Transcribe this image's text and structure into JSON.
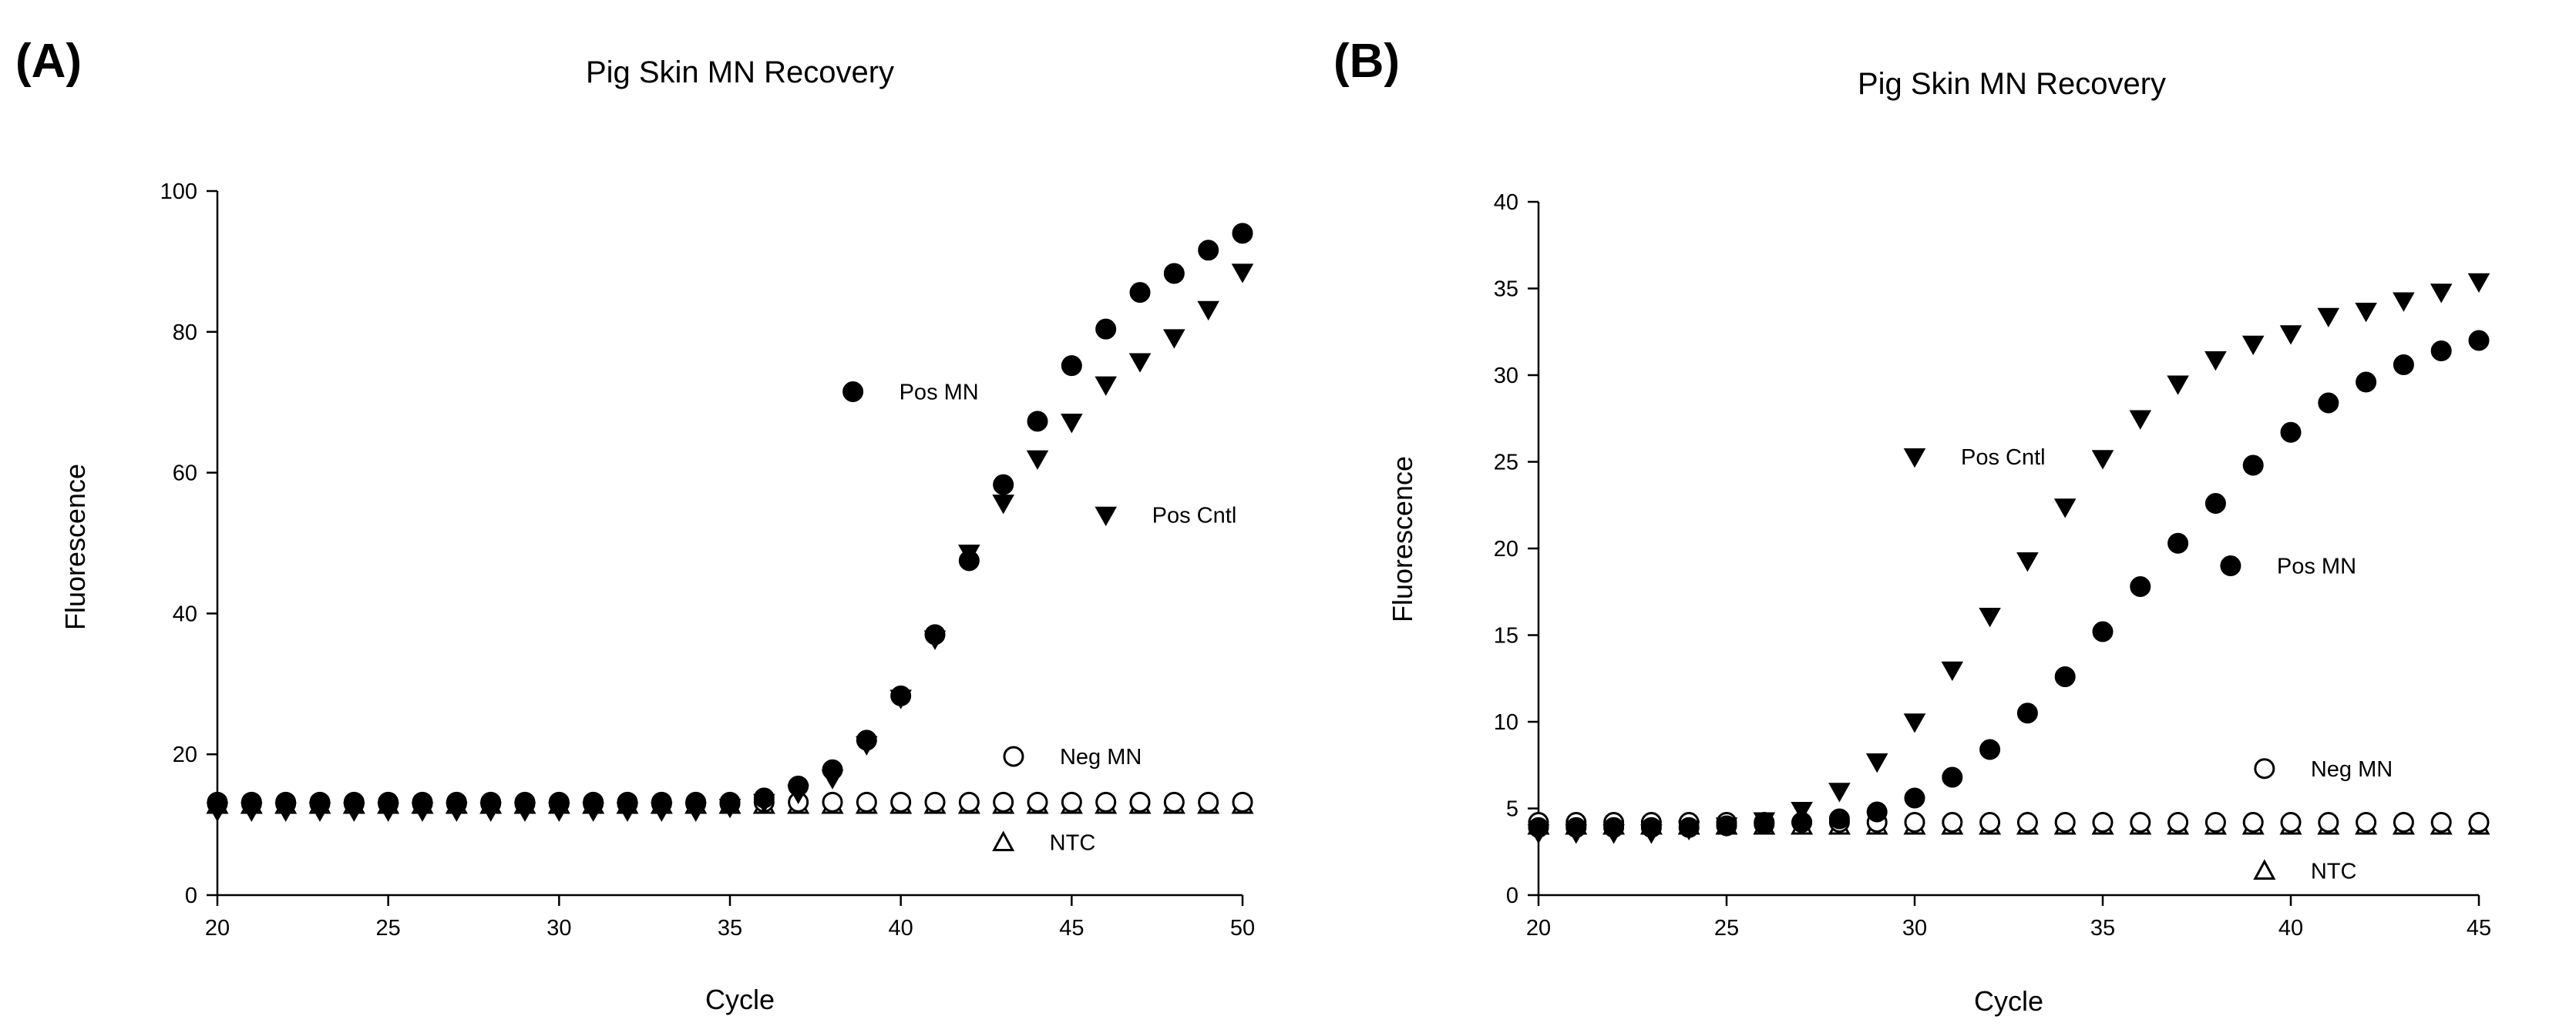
{
  "chart_data": [
    {
      "panel_label": "(A)",
      "type": "scatter",
      "title": "Pig Skin MN Recovery",
      "xlabel": "Cycle",
      "ylabel": "Fluorescence",
      "xlim": [
        20,
        50
      ],
      "ylim": [
        0,
        100
      ],
      "xticks": [
        20,
        25,
        30,
        35,
        40,
        45,
        50
      ],
      "yticks": [
        0,
        20,
        40,
        60,
        80,
        100
      ],
      "grid": false,
      "series": [
        {
          "name": "Pos MN",
          "marker": "filled-circle",
          "x": [
            20,
            21,
            22,
            23,
            24,
            25,
            26,
            27,
            28,
            29,
            30,
            31,
            32,
            33,
            34,
            35,
            36,
            37,
            38,
            39,
            40,
            41,
            42,
            43,
            44,
            45,
            46,
            47,
            48,
            49,
            50
          ],
          "y": [
            13,
            13,
            13,
            13,
            13,
            13,
            13,
            13,
            13,
            13,
            13,
            13,
            13,
            13,
            13,
            13,
            13.8,
            15.5,
            17.8,
            22,
            28.3,
            37,
            47.5,
            58.3,
            67.3,
            75.2,
            80.4,
            85.6,
            88.3,
            91.6,
            94
          ]
        },
        {
          "name": "Pos Cntl",
          "marker": "filled-triangle-down",
          "x": [
            20,
            21,
            22,
            23,
            24,
            25,
            26,
            27,
            28,
            29,
            30,
            31,
            32,
            33,
            34,
            35,
            36,
            37,
            38,
            39,
            40,
            41,
            42,
            43,
            44,
            45,
            46,
            47,
            48,
            49,
            50
          ],
          "y": [
            12,
            12,
            12,
            12,
            12,
            12,
            12,
            12,
            12,
            12,
            12,
            12,
            12,
            12,
            12,
            12.5,
            13.2,
            14.5,
            16.6,
            21.4,
            28,
            36.4,
            48.6,
            55.7,
            62,
            67.2,
            72.5,
            75.8,
            79.2,
            83.2,
            88.5
          ]
        },
        {
          "name": "Neg MN",
          "marker": "open-circle",
          "x": [
            20,
            21,
            22,
            23,
            24,
            25,
            26,
            27,
            28,
            29,
            30,
            31,
            32,
            33,
            34,
            35,
            36,
            37,
            38,
            39,
            40,
            41,
            42,
            43,
            44,
            45,
            46,
            47,
            48,
            49,
            50
          ],
          "y": [
            13.2,
            13.2,
            13.2,
            13.2,
            13.2,
            13.2,
            13.2,
            13.2,
            13.2,
            13.2,
            13.2,
            13.2,
            13.2,
            13.2,
            13.2,
            13.2,
            13.2,
            13.2,
            13.2,
            13.2,
            13.2,
            13.2,
            13.2,
            13.2,
            13.2,
            13.2,
            13.2,
            13.2,
            13.2,
            13.2,
            13.2
          ]
        },
        {
          "name": "NTC",
          "marker": "open-triangle-up",
          "x": [
            20,
            21,
            22,
            23,
            24,
            25,
            26,
            27,
            28,
            29,
            30,
            31,
            32,
            33,
            34,
            35,
            36,
            37,
            38,
            39,
            40,
            41,
            42,
            43,
            44,
            45,
            46,
            47,
            48,
            49,
            50
          ],
          "y": [
            12.8,
            12.8,
            12.8,
            12.8,
            12.8,
            12.8,
            12.8,
            12.8,
            12.8,
            12.8,
            12.8,
            12.8,
            12.8,
            12.8,
            12.8,
            12.8,
            12.8,
            12.8,
            12.8,
            12.8,
            12.8,
            12.8,
            12.8,
            12.8,
            12.8,
            12.8,
            12.8,
            12.8,
            12.8,
            12.8,
            12.8
          ]
        }
      ],
      "legend_entries": [
        {
          "name": "Pos MN",
          "marker": "filled-circle",
          "x": 38.6,
          "y": 71.5
        },
        {
          "name": "Pos Cntl",
          "marker": "filled-triangle-down",
          "x": 46,
          "y": 54
        },
        {
          "name": "Neg MN",
          "marker": "open-circle",
          "x": 43.3,
          "y": 19.7
        },
        {
          "name": "NTC",
          "marker": "open-triangle-up",
          "x": 43,
          "y": 7.5
        }
      ]
    },
    {
      "panel_label": "(B)",
      "type": "scatter",
      "title": "Pig Skin MN Recovery",
      "xlabel": "Cycle",
      "ylabel": "Fluorescence",
      "xlim": [
        20,
        45
      ],
      "ylim": [
        0,
        40
      ],
      "xticks": [
        20,
        25,
        30,
        35,
        40,
        45
      ],
      "yticks": [
        0,
        5,
        10,
        15,
        20,
        25,
        30,
        35,
        40
      ],
      "grid": false,
      "series": [
        {
          "name": "Pos MN",
          "marker": "filled-circle",
          "x": [
            20,
            21,
            22,
            23,
            24,
            25,
            26,
            27,
            28,
            29,
            30,
            31,
            32,
            33,
            34,
            35,
            36,
            37,
            38,
            39,
            40,
            41,
            42,
            43,
            44,
            45
          ],
          "y": [
            3.9,
            3.9,
            3.9,
            3.9,
            3.9,
            4,
            4.1,
            4.2,
            4.4,
            4.8,
            5.6,
            6.8,
            8.4,
            10.5,
            12.6,
            15.2,
            17.8,
            20.3,
            22.6,
            24.8,
            26.7,
            28.4,
            29.6,
            30.6,
            31.4,
            32
          ]
        },
        {
          "name": "Pos Cntl",
          "marker": "filled-triangle-down",
          "x": [
            20,
            21,
            22,
            23,
            24,
            25,
            26,
            27,
            28,
            29,
            30,
            31,
            32,
            33,
            34,
            35,
            36,
            37,
            38,
            39,
            40,
            41,
            42,
            43,
            44,
            45
          ],
          "y": [
            3.6,
            3.6,
            3.6,
            3.6,
            3.8,
            4,
            4.3,
            4.9,
            6,
            7.7,
            10,
            13,
            16.1,
            19.3,
            22.4,
            25.2,
            27.5,
            29.5,
            30.9,
            31.8,
            32.4,
            33.4,
            33.7,
            34.3,
            34.8,
            35.4
          ]
        },
        {
          "name": "Neg MN",
          "marker": "open-circle",
          "x": [
            20,
            21,
            22,
            23,
            24,
            25,
            26,
            27,
            28,
            29,
            30,
            31,
            32,
            33,
            34,
            35,
            36,
            37,
            38,
            39,
            40,
            41,
            42,
            43,
            44,
            45
          ],
          "y": [
            4.2,
            4.2,
            4.2,
            4.2,
            4.2,
            4.2,
            4.2,
            4.2,
            4.2,
            4.2,
            4.2,
            4.2,
            4.2,
            4.2,
            4.2,
            4.2,
            4.2,
            4.2,
            4.2,
            4.2,
            4.2,
            4.2,
            4.2,
            4.2,
            4.2,
            4.2
          ]
        },
        {
          "name": "NTC",
          "marker": "open-triangle-up",
          "x": [
            20,
            21,
            22,
            23,
            24,
            25,
            26,
            27,
            28,
            29,
            30,
            31,
            32,
            33,
            34,
            35,
            36,
            37,
            38,
            39,
            40,
            41,
            42,
            43,
            44,
            45
          ],
          "y": [
            4,
            4,
            4,
            4,
            4,
            4,
            4,
            4,
            4,
            4,
            4,
            4,
            4,
            4,
            4,
            4,
            4,
            4,
            4,
            4,
            4,
            4,
            4,
            4,
            4,
            4
          ]
        }
      ],
      "legend_entries": [
        {
          "name": "Pos Cntl",
          "marker": "filled-triangle-down",
          "x": 30,
          "y": 25.3
        },
        {
          "name": "Pos MN",
          "marker": "filled-circle",
          "x": 38.4,
          "y": 19
        },
        {
          "name": "Neg MN",
          "marker": "open-circle",
          "x": 39.3,
          "y": 7.3
        },
        {
          "name": "NTC",
          "marker": "open-triangle-up",
          "x": 39.3,
          "y": 1.4
        }
      ]
    }
  ]
}
